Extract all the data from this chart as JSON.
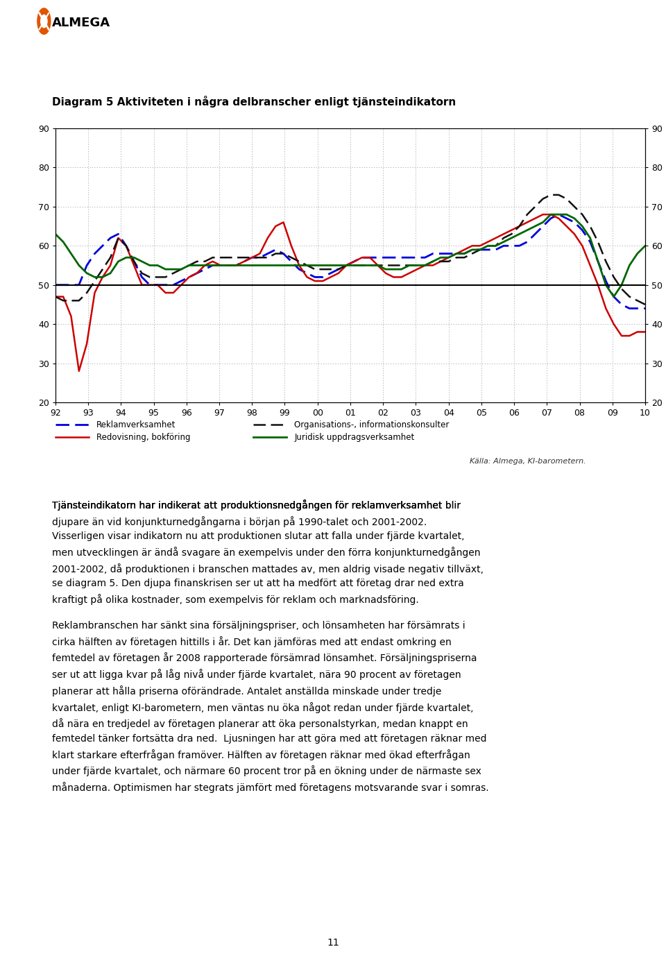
{
  "title": "Diagram 5 Aktiviteten i några delbranscher enligt tjänsteindikatorn",
  "ylim": [
    20,
    90
  ],
  "yticks": [
    20,
    30,
    40,
    50,
    60,
    70,
    80,
    90
  ],
  "x_labels": [
    "92",
    "93",
    "94",
    "95",
    "96",
    "97",
    "98",
    "99",
    "00",
    "01",
    "02",
    "03",
    "04",
    "05",
    "06",
    "07",
    "08",
    "09",
    "10"
  ],
  "hline_y": 50,
  "source_text": "Källa: Almega, KI-barometern.",
  "legend_col1_row1_label": "Reklamverksamhet",
  "legend_col1_row2_label": "Redovisning, bokföring",
  "legend_col2_row1_label": "Organisations-, informationskonsulter",
  "legend_col2_row2_label": "Juridisk uppdragsverksamhet",
  "body_text1_plain": "Tjänsteindikatorn har indikerat att produktionsnedgången för ",
  "body_text1_bold": "reklamverksamhet",
  "body_text1_rest": " blir\ndjupare än vid konjunkturnedgångarna i början på 1990-talet och 2001-2002.\nVisserligen visar indikatorn nu att produktionen slutar att falla under fjärde kvartalet,\nmen utvecklingen är ändå svagare än exempelvis under den förra konjunkturnedgången\n2001-2002, då produktionen i branschen mattades av, men aldrig visade negativ tillväxt,\nse diagram 5. Den djupa finanskrisen ser ut att ha medfört att företag drar ned extra\nkraftigt på olika kostnader, som exempelvis för reklam och marknadsföring.",
  "body_text2": "Reklambranschen har sänkt sina försäljningspriser, och lönsamheten har försämrats i\ncirka hälften av företagen hittills i år. Det kan jämföras med att endast omkring en\nfemtedel av företagen år 2008 rapporterade försämrad lönsamhet. Försäljningspriserna\nser ut att ligga kvar på låg nivå under fjärde kvartalet, nära 90 procent av företagen\nplanerar att hålla priserna oförändrade. Antalet anställda minskade under tredje\nkvartalet, enligt KI-barometern, men väntas nu öka något redan under fjärde kvartalet,\ndå nära en tredjedel av företagen planerar att öka personalstyrkan, medan knappt en\nfemtedel tänker fortsätta dra ned.  Ljusningen har att göra med att företagen räknar med\nklart starkare efterfrågan framöver. Hälften av företagen räknar med ökad efterfrågan\nunder fjärde kvartalet, och närmare 60 procent tror på en ökning under de närmaste sex\nmånaderna. Optimismen har stegrats jämfört med företagens motsvarande svar i somras.",
  "reklam_blue_dashed": [
    50,
    50,
    50,
    50,
    55,
    58,
    60,
    62,
    63,
    60,
    56,
    52,
    50,
    50,
    50,
    50,
    51,
    52,
    53,
    54,
    55,
    55,
    55,
    55,
    56,
    57,
    57,
    58,
    59,
    58,
    56,
    54,
    53,
    52,
    52,
    53,
    54,
    55,
    56,
    57,
    57,
    57,
    57,
    57,
    57,
    57,
    57,
    57,
    58,
    58,
    58,
    58,
    58,
    59,
    59,
    59,
    59,
    60,
    60,
    60,
    61,
    63,
    65,
    67,
    68,
    67,
    66,
    64,
    61,
    56,
    51,
    47,
    45,
    44,
    44,
    44
  ],
  "redov_red_solid": [
    47,
    47,
    42,
    28,
    35,
    48,
    52,
    55,
    62,
    60,
    55,
    50,
    50,
    50,
    48,
    48,
    50,
    52,
    53,
    55,
    56,
    55,
    55,
    55,
    56,
    57,
    58,
    62,
    65,
    66,
    60,
    55,
    52,
    51,
    51,
    52,
    53,
    55,
    56,
    57,
    57,
    55,
    53,
    52,
    52,
    53,
    54,
    55,
    55,
    56,
    57,
    58,
    59,
    60,
    60,
    61,
    62,
    63,
    64,
    65,
    66,
    67,
    68,
    68,
    67,
    65,
    63,
    60,
    55,
    50,
    44,
    40,
    37,
    37,
    38,
    38
  ],
  "org_black_dashed": [
    47,
    46,
    46,
    46,
    48,
    51,
    54,
    57,
    62,
    60,
    56,
    53,
    52,
    52,
    52,
    53,
    54,
    55,
    56,
    56,
    57,
    57,
    57,
    57,
    57,
    57,
    57,
    57,
    58,
    58,
    57,
    56,
    55,
    54,
    54,
    54,
    54,
    55,
    55,
    55,
    55,
    55,
    55,
    55,
    55,
    55,
    55,
    55,
    56,
    56,
    56,
    57,
    57,
    58,
    59,
    60,
    60,
    62,
    63,
    65,
    68,
    70,
    72,
    73,
    73,
    72,
    70,
    68,
    65,
    61,
    56,
    52,
    49,
    47,
    46,
    45
  ],
  "juridisk_green_solid": [
    63,
    61,
    58,
    55,
    53,
    52,
    52,
    53,
    56,
    57,
    57,
    56,
    55,
    55,
    54,
    54,
    54,
    55,
    55,
    55,
    55,
    55,
    55,
    55,
    55,
    55,
    55,
    55,
    55,
    55,
    55,
    55,
    55,
    55,
    55,
    55,
    55,
    55,
    55,
    55,
    55,
    55,
    54,
    54,
    54,
    55,
    55,
    55,
    56,
    57,
    57,
    58,
    58,
    59,
    59,
    60,
    60,
    61,
    62,
    63,
    64,
    65,
    66,
    68,
    68,
    68,
    67,
    65,
    62,
    56,
    50,
    47,
    50,
    55,
    58,
    60
  ]
}
